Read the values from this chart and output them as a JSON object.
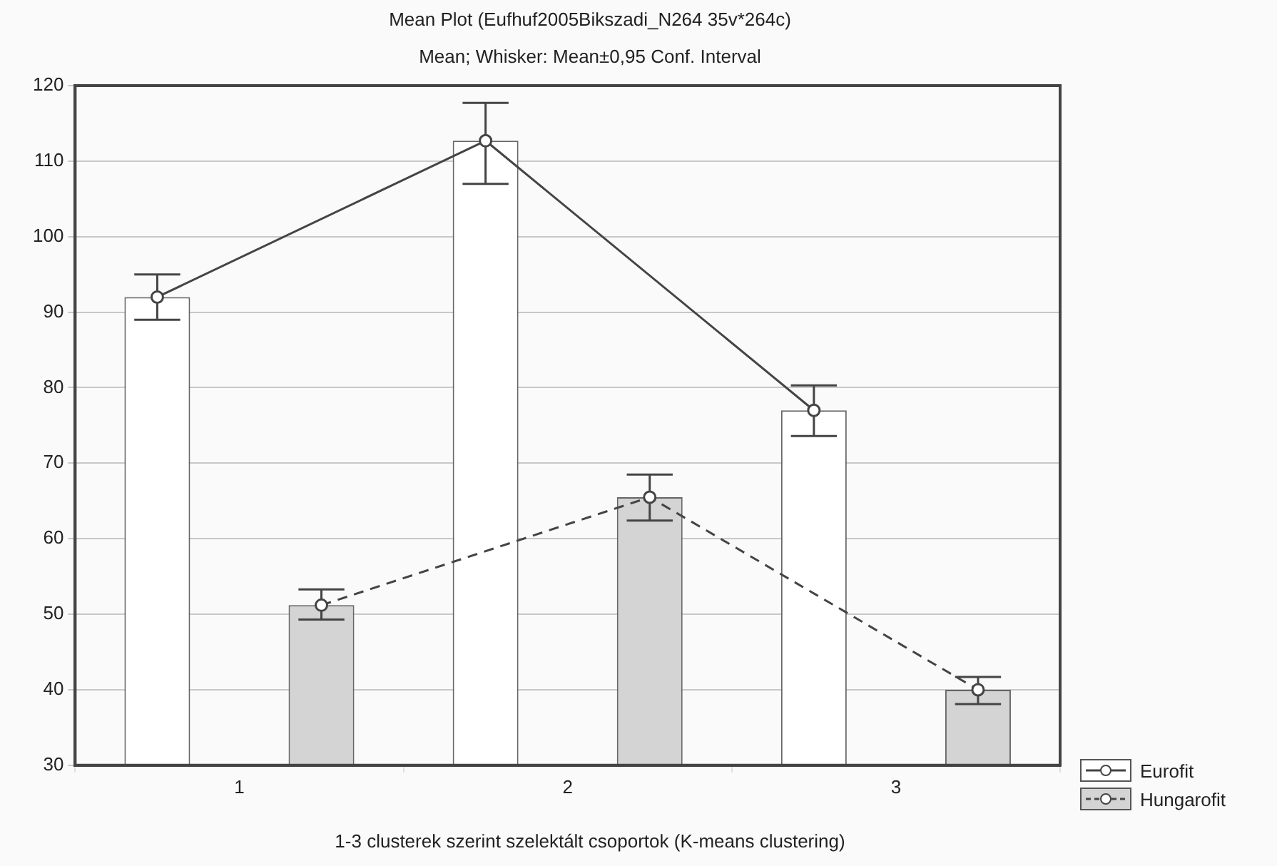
{
  "chart_data": {
    "type": "bar",
    "title": "Mean Plot (Eufhuf2005Bikszadi_N264 35v*264c)",
    "subtitle": "Mean; Whisker: Mean±0,95 Conf. Interval",
    "xlabel": "1-3 clusterek szerint szelektált csoportok (K-means clustering)",
    "xlim": [
      0.5,
      3.5
    ],
    "xticks": [
      1,
      2,
      3
    ],
    "series": [
      {
        "name": "Eurofit",
        "color": "#ffffff",
        "x": [
          0.75,
          1.75,
          2.75
        ],
        "values": [
          92,
          112.7,
          77
        ],
        "errors": [
          [
            89,
            95
          ],
          [
            107,
            117.7
          ],
          [
            73.6,
            80.3
          ]
        ]
      },
      {
        "name": "Hungarofit",
        "color": "#d4d4d4",
        "x": [
          1.25,
          2.25,
          3.25
        ],
        "values": [
          51.2,
          65.5,
          40
        ],
        "errors": [
          [
            49.3,
            53.3
          ],
          [
            62.4,
            68.5
          ],
          [
            38.1,
            41.7
          ]
        ]
      },
      {
        "type": "line",
        "color": "#444444",
        "x": [
          0.75,
          1.75,
          2.75
        ],
        "values": [
          92,
          112.7,
          77
        ],
        "line_style": "solid",
        "marker": "circle"
      },
      {
        "type": "line",
        "color": "#444444",
        "x": [
          1.25,
          2.25,
          3.25
        ],
        "values": [
          51.2,
          65.5,
          40
        ],
        "line_style": "dashed",
        "marker": "circle"
      }
    ],
    "ylim": [
      30,
      120
    ],
    "yticks": [
      30,
      40,
      50,
      60,
      70,
      80,
      90,
      100,
      110,
      120
    ],
    "grid": "y",
    "legend": "bottom right"
  }
}
